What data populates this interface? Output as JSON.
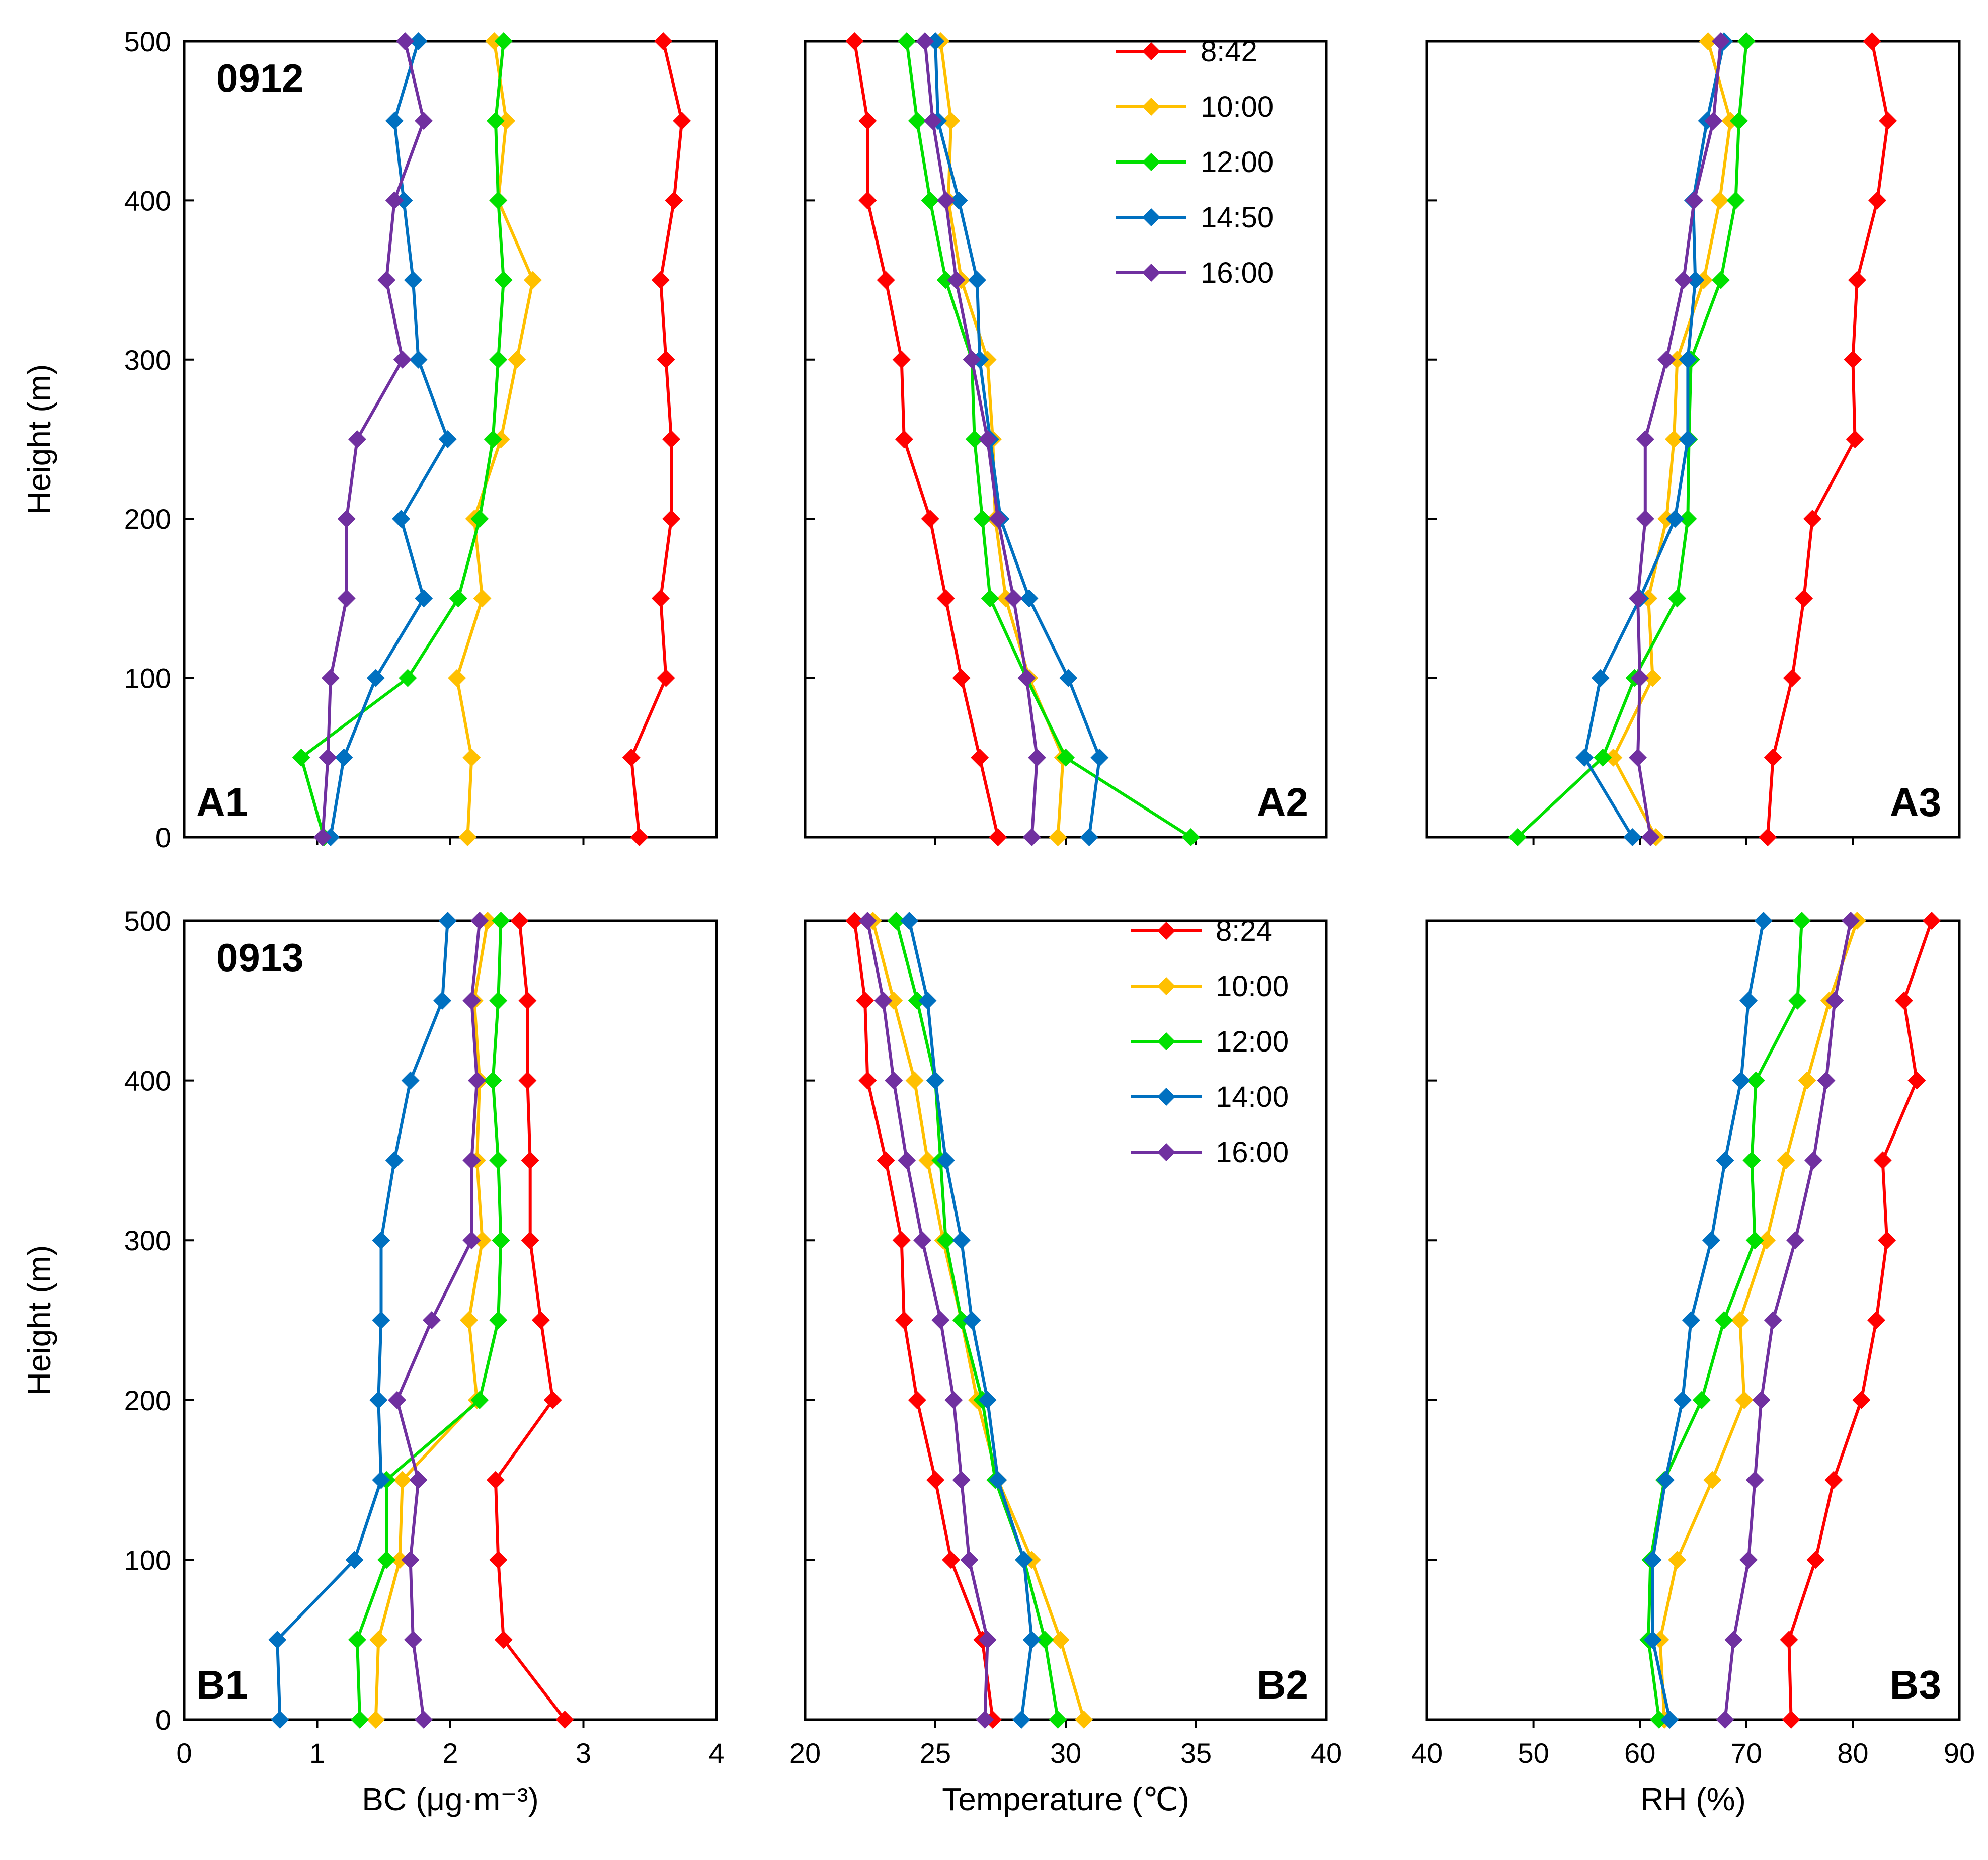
{
  "figure": {
    "ylabel": "Height (m)",
    "heights": [
      0,
      50,
      100,
      150,
      200,
      250,
      300,
      350,
      400,
      450,
      500
    ],
    "y_ticks": [
      0,
      100,
      200,
      300,
      400,
      500
    ],
    "columns": [
      {
        "xlabel": "BC (μg·m⁻³)",
        "xlim": [
          0,
          4
        ],
        "x_ticks": [
          0,
          1,
          2,
          3,
          4
        ]
      },
      {
        "xlabel": "Temperature (℃)",
        "xlim": [
          20,
          40
        ],
        "x_ticks": [
          20,
          25,
          30,
          35,
          40
        ]
      },
      {
        "xlabel": "RH (%)",
        "xlim": [
          40,
          90
        ],
        "x_ticks": [
          40,
          50,
          60,
          70,
          80,
          90
        ]
      }
    ]
  },
  "chart_data": [
    {
      "type": "line",
      "panel": "A1",
      "row": 0,
      "col": 0,
      "date_label": "0912",
      "xlabel": "BC (μg·m⁻³)",
      "ylabel": "Height (m)",
      "xlim": [
        0,
        4
      ],
      "ylim": [
        0,
        500
      ],
      "y": [
        0,
        50,
        100,
        150,
        200,
        250,
        300,
        350,
        400,
        450,
        500
      ],
      "series": [
        {
          "name": "8:42",
          "color": "#FF0000",
          "values": [
            3.42,
            3.36,
            3.62,
            3.58,
            3.66,
            3.66,
            3.62,
            3.58,
            3.68,
            3.74,
            3.6
          ]
        },
        {
          "name": "10:00",
          "color": "#FFC000",
          "values": [
            2.13,
            2.16,
            2.05,
            2.24,
            2.18,
            2.38,
            2.5,
            2.62,
            2.36,
            2.42,
            2.33
          ]
        },
        {
          "name": "12:00",
          "color": "#00E000",
          "values": [
            1.05,
            0.88,
            1.68,
            2.06,
            2.22,
            2.32,
            2.36,
            2.4,
            2.36,
            2.34,
            2.4
          ]
        },
        {
          "name": "14:50",
          "color": "#0070C0",
          "values": [
            1.1,
            1.2,
            1.44,
            1.8,
            1.63,
            1.98,
            1.76,
            1.72,
            1.65,
            1.58,
            1.76
          ]
        },
        {
          "name": "16:00",
          "color": "#7030A0",
          "values": [
            1.04,
            1.08,
            1.1,
            1.22,
            1.22,
            1.3,
            1.64,
            1.52,
            1.58,
            1.8,
            1.66
          ]
        }
      ]
    },
    {
      "type": "line",
      "panel": "A2",
      "row": 0,
      "col": 1,
      "xlabel": "Temperature (℃)",
      "ylabel": "Height (m)",
      "xlim": [
        20,
        40
      ],
      "ylim": [
        0,
        500
      ],
      "y": [
        0,
        50,
        100,
        150,
        200,
        250,
        300,
        350,
        400,
        450,
        500
      ],
      "series": [
        {
          "name": "8:42",
          "color": "#FF0000",
          "values": [
            27.4,
            26.7,
            26.0,
            25.4,
            24.8,
            23.8,
            23.7,
            23.1,
            22.4,
            22.4,
            21.9
          ]
        },
        {
          "name": "10:00",
          "color": "#FFC000",
          "values": [
            29.7,
            29.9,
            28.6,
            27.7,
            27.3,
            27.2,
            27.0,
            26.0,
            25.5,
            25.6,
            25.2
          ]
        },
        {
          "name": "12:00",
          "color": "#00E000",
          "values": [
            34.8,
            30.0,
            28.5,
            27.1,
            26.8,
            26.5,
            26.4,
            25.4,
            24.8,
            24.3,
            23.9
          ]
        },
        {
          "name": "14:50",
          "color": "#0070C0",
          "values": [
            30.9,
            31.3,
            30.1,
            28.6,
            27.5,
            27.1,
            26.7,
            26.6,
            25.9,
            25.1,
            25.0
          ]
        },
        {
          "name": "16:00",
          "color": "#7030A0",
          "values": [
            28.7,
            28.9,
            28.5,
            28.0,
            27.4,
            27.0,
            26.4,
            25.8,
            25.4,
            24.9,
            24.6
          ]
        }
      ]
    },
    {
      "type": "line",
      "panel": "A3",
      "row": 0,
      "col": 2,
      "xlabel": "RH (%)",
      "ylabel": "Height (m)",
      "xlim": [
        40,
        90
      ],
      "ylim": [
        0,
        500
      ],
      "y": [
        0,
        50,
        100,
        150,
        200,
        250,
        300,
        350,
        400,
        450,
        500
      ],
      "series": [
        {
          "name": "8:42",
          "color": "#FF0000",
          "values": [
            72.0,
            72.5,
            74.3,
            75.4,
            76.2,
            80.2,
            80.0,
            80.4,
            82.3,
            83.3,
            81.8
          ]
        },
        {
          "name": "10:00",
          "color": "#FFC000",
          "values": [
            61.5,
            57.5,
            61.2,
            60.8,
            62.5,
            63.2,
            63.5,
            66.0,
            67.5,
            68.5,
            66.4
          ]
        },
        {
          "name": "12:00",
          "color": "#00E000",
          "values": [
            48.5,
            56.5,
            59.5,
            63.5,
            64.5,
            64.6,
            64.8,
            67.6,
            69.0,
            69.3,
            70.0
          ]
        },
        {
          "name": "14:50",
          "color": "#0070C0",
          "values": [
            59.3,
            54.8,
            56.3,
            60.0,
            63.3,
            64.5,
            64.5,
            65.2,
            65.0,
            66.3,
            67.9
          ]
        },
        {
          "name": "16:00",
          "color": "#7030A0",
          "values": [
            61.0,
            59.8,
            60.0,
            59.8,
            60.5,
            60.5,
            62.5,
            64.1,
            65.1,
            66.9,
            67.6
          ]
        }
      ]
    },
    {
      "type": "line",
      "panel": "B1",
      "row": 1,
      "col": 0,
      "date_label": "0913",
      "xlabel": "BC (μg·m⁻³)",
      "ylabel": "Height (m)",
      "xlim": [
        0,
        4
      ],
      "ylim": [
        0,
        500
      ],
      "y": [
        0,
        50,
        100,
        150,
        200,
        250,
        300,
        350,
        400,
        450,
        500
      ],
      "series": [
        {
          "name": "8:24",
          "color": "#FF0000",
          "values": [
            2.86,
            2.4,
            2.36,
            2.34,
            2.77,
            2.68,
            2.6,
            2.6,
            2.58,
            2.58,
            2.52
          ]
        },
        {
          "name": "10:00",
          "color": "#FFC000",
          "values": [
            1.44,
            1.46,
            1.62,
            1.64,
            2.2,
            2.14,
            2.24,
            2.2,
            2.22,
            2.18,
            2.28
          ]
        },
        {
          "name": "12:00",
          "color": "#00E000",
          "values": [
            1.32,
            1.3,
            1.52,
            1.52,
            2.22,
            2.36,
            2.38,
            2.36,
            2.32,
            2.36,
            2.38
          ]
        },
        {
          "name": "14:00",
          "color": "#0070C0",
          "values": [
            0.72,
            0.7,
            1.28,
            1.48,
            1.46,
            1.48,
            1.48,
            1.58,
            1.7,
            1.94,
            1.98
          ]
        },
        {
          "name": "16:00",
          "color": "#7030A0",
          "values": [
            1.8,
            1.72,
            1.7,
            1.76,
            1.6,
            1.86,
            2.16,
            2.16,
            2.2,
            2.16,
            2.22
          ]
        }
      ]
    },
    {
      "type": "line",
      "panel": "B2",
      "row": 1,
      "col": 1,
      "xlabel": "Temperature (℃)",
      "ylabel": "Height (m)",
      "xlim": [
        20,
        40
      ],
      "ylim": [
        0,
        500
      ],
      "y": [
        0,
        50,
        100,
        150,
        200,
        250,
        300,
        350,
        400,
        450,
        500
      ],
      "series": [
        {
          "name": "8:24",
          "color": "#FF0000",
          "values": [
            27.2,
            26.8,
            25.6,
            25.0,
            24.3,
            23.8,
            23.7,
            23.1,
            22.4,
            22.3,
            21.9
          ]
        },
        {
          "name": "10:00",
          "color": "#FFC000",
          "values": [
            30.7,
            29.8,
            28.7,
            27.4,
            26.6,
            26.0,
            25.3,
            24.7,
            24.2,
            23.4,
            22.6
          ]
        },
        {
          "name": "12:00",
          "color": "#00E000",
          "values": [
            29.7,
            29.2,
            28.4,
            27.3,
            26.8,
            26.0,
            25.4,
            25.2,
            25.0,
            24.3,
            23.5
          ]
        },
        {
          "name": "14:00",
          "color": "#0070C0",
          "values": [
            28.3,
            28.7,
            28.4,
            27.4,
            27.0,
            26.4,
            26.0,
            25.4,
            25.0,
            24.7,
            24.0
          ]
        },
        {
          "name": "16:00",
          "color": "#7030A0",
          "values": [
            26.9,
            27.0,
            26.3,
            26.0,
            25.7,
            25.2,
            24.5,
            23.9,
            23.4,
            23.0,
            22.4
          ]
        }
      ]
    },
    {
      "type": "line",
      "panel": "B3",
      "row": 1,
      "col": 2,
      "xlabel": "RH (%)",
      "ylabel": "Height (m)",
      "xlim": [
        40,
        90
      ],
      "ylim": [
        0,
        500
      ],
      "y": [
        0,
        50,
        100,
        150,
        200,
        250,
        300,
        350,
        400,
        450,
        500
      ],
      "series": [
        {
          "name": "8:24",
          "color": "#FF0000",
          "values": [
            74.2,
            74.0,
            76.5,
            78.2,
            80.8,
            82.2,
            83.2,
            82.8,
            86.0,
            84.8,
            87.4
          ]
        },
        {
          "name": "10:00",
          "color": "#FFC000",
          "values": [
            62.3,
            61.9,
            63.5,
            66.8,
            69.8,
            69.4,
            71.9,
            73.7,
            75.7,
            77.8,
            80.4
          ]
        },
        {
          "name": "12:00",
          "color": "#00E000",
          "values": [
            61.8,
            60.8,
            61.0,
            62.3,
            65.8,
            67.9,
            70.8,
            70.5,
            70.9,
            74.8,
            75.2
          ]
        },
        {
          "name": "14:00",
          "color": "#0070C0",
          "values": [
            62.8,
            61.2,
            61.2,
            62.4,
            64.0,
            64.8,
            66.7,
            68.0,
            69.5,
            70.2,
            71.6
          ]
        },
        {
          "name": "16:00",
          "color": "#7030A0",
          "values": [
            68.0,
            68.8,
            70.2,
            70.8,
            71.4,
            72.5,
            74.6,
            76.3,
            77.5,
            78.3,
            79.8
          ]
        }
      ]
    }
  ]
}
